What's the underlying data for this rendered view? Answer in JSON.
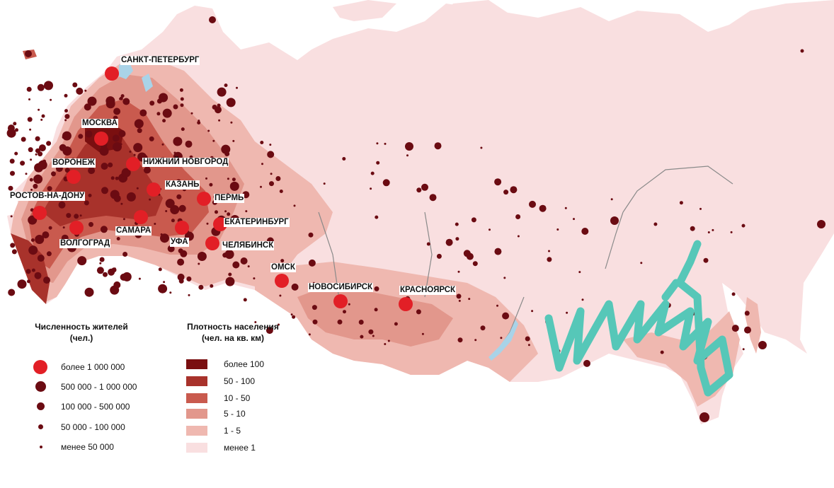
{
  "colors": {
    "density_100_plus": "#7a0f10",
    "density_50_100": "#a8322b",
    "density_10_50": "#c95a4e",
    "density_5_10": "#e2978c",
    "density_1_5": "#efb8b0",
    "density_less_1": "#f9dfe0",
    "city_1m": "#e21f26",
    "city_small": "#6b0b12",
    "water": "#a9d3e8",
    "river": "#8a8a8a",
    "scribble": "#56c7b8"
  },
  "cities": [
    {
      "name": "САНКТ-ПЕТЕРБУРГ"
    },
    {
      "name": "МОСКВА"
    },
    {
      "name": "НИЖНИЙ НОВГОРОД"
    },
    {
      "name": "ВОРОНЕЖ"
    },
    {
      "name": "КАЗАНЬ"
    },
    {
      "name": "ПЕРМЬ"
    },
    {
      "name": "РОСТОВ-НА-ДОНУ"
    },
    {
      "name": "ЕКАТЕРИНБУРГ"
    },
    {
      "name": "САМАРА"
    },
    {
      "name": "ВОЛГОГРАД"
    },
    {
      "name": "УФА"
    },
    {
      "name": "ЧЕЛЯБИНСК"
    },
    {
      "name": "ОМСК"
    },
    {
      "name": "НОВОСИБИРСК"
    },
    {
      "name": "КРАСНОЯРСК"
    }
  ],
  "legend_population": {
    "title": "Численность жителей",
    "subtitle": "(чел.)",
    "items": [
      {
        "label": "более 1 000 000",
        "class": "1m"
      },
      {
        "label": "500 000 - 1 000 000",
        "class": "500k"
      },
      {
        "label": "100 000 - 500 000",
        "class": "100k"
      },
      {
        "label": "50 000 - 100 000",
        "class": "50k"
      },
      {
        "label": "менее 50 000",
        "class": "lt50k"
      }
    ]
  },
  "legend_density": {
    "title": "Плотность населения",
    "subtitle": "(чел. на кв. км)",
    "items": [
      {
        "label": "более 100",
        "color": "#7a0f10"
      },
      {
        "label": "50 - 100",
        "color": "#a8322b"
      },
      {
        "label": "10 - 50",
        "color": "#c95a4e"
      },
      {
        "label": "5 - 10",
        "color": "#e2978c"
      },
      {
        "label": "1 - 5",
        "color": "#efb8b0"
      },
      {
        "label": "менее 1",
        "color": "#f9dfe0"
      }
    ]
  }
}
